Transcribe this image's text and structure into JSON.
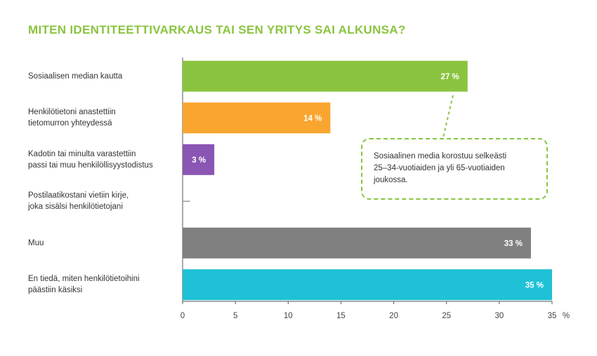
{
  "chart_data": {
    "type": "bar",
    "orientation": "horizontal",
    "title": "MITEN IDENTITEETTIVARKAUS TAI SEN YRITYS SAI ALKUNSA?",
    "categories": [
      "Sosiaalisen median kautta",
      "Henkilötietoni anastettiin\ntietomurron yhteydessä",
      "Kadotin tai minulta varastettiin\npassi tai muu henkilöllisyystodistus",
      "Postilaatikostani vietiin kirje,\njoka sisälsi henkilötietojani",
      "Muu",
      "En tiedä, miten henkilötietoihini\npäästiin käsiksi"
    ],
    "values": [
      27,
      14,
      3,
      0.7,
      33,
      35
    ],
    "value_labels": [
      "27 %",
      "14 %",
      "3 %",
      "",
      "33 %",
      "35 %"
    ],
    "colors": [
      "#8ac43f",
      "#f9a530",
      "#8a55b3",
      "#999999",
      "#808080",
      "#1fc1d6"
    ],
    "xlim": [
      0,
      35
    ],
    "x_ticks": [
      "0",
      "5",
      "10",
      "15",
      "20",
      "25",
      "30",
      "35"
    ],
    "x_unit": "%",
    "grid": false,
    "annotation": "Sosiaalinen media korostuu selkeästi\n25–34-vuotiaiden ja yli 65-vuotiaiden\njoukossa."
  }
}
